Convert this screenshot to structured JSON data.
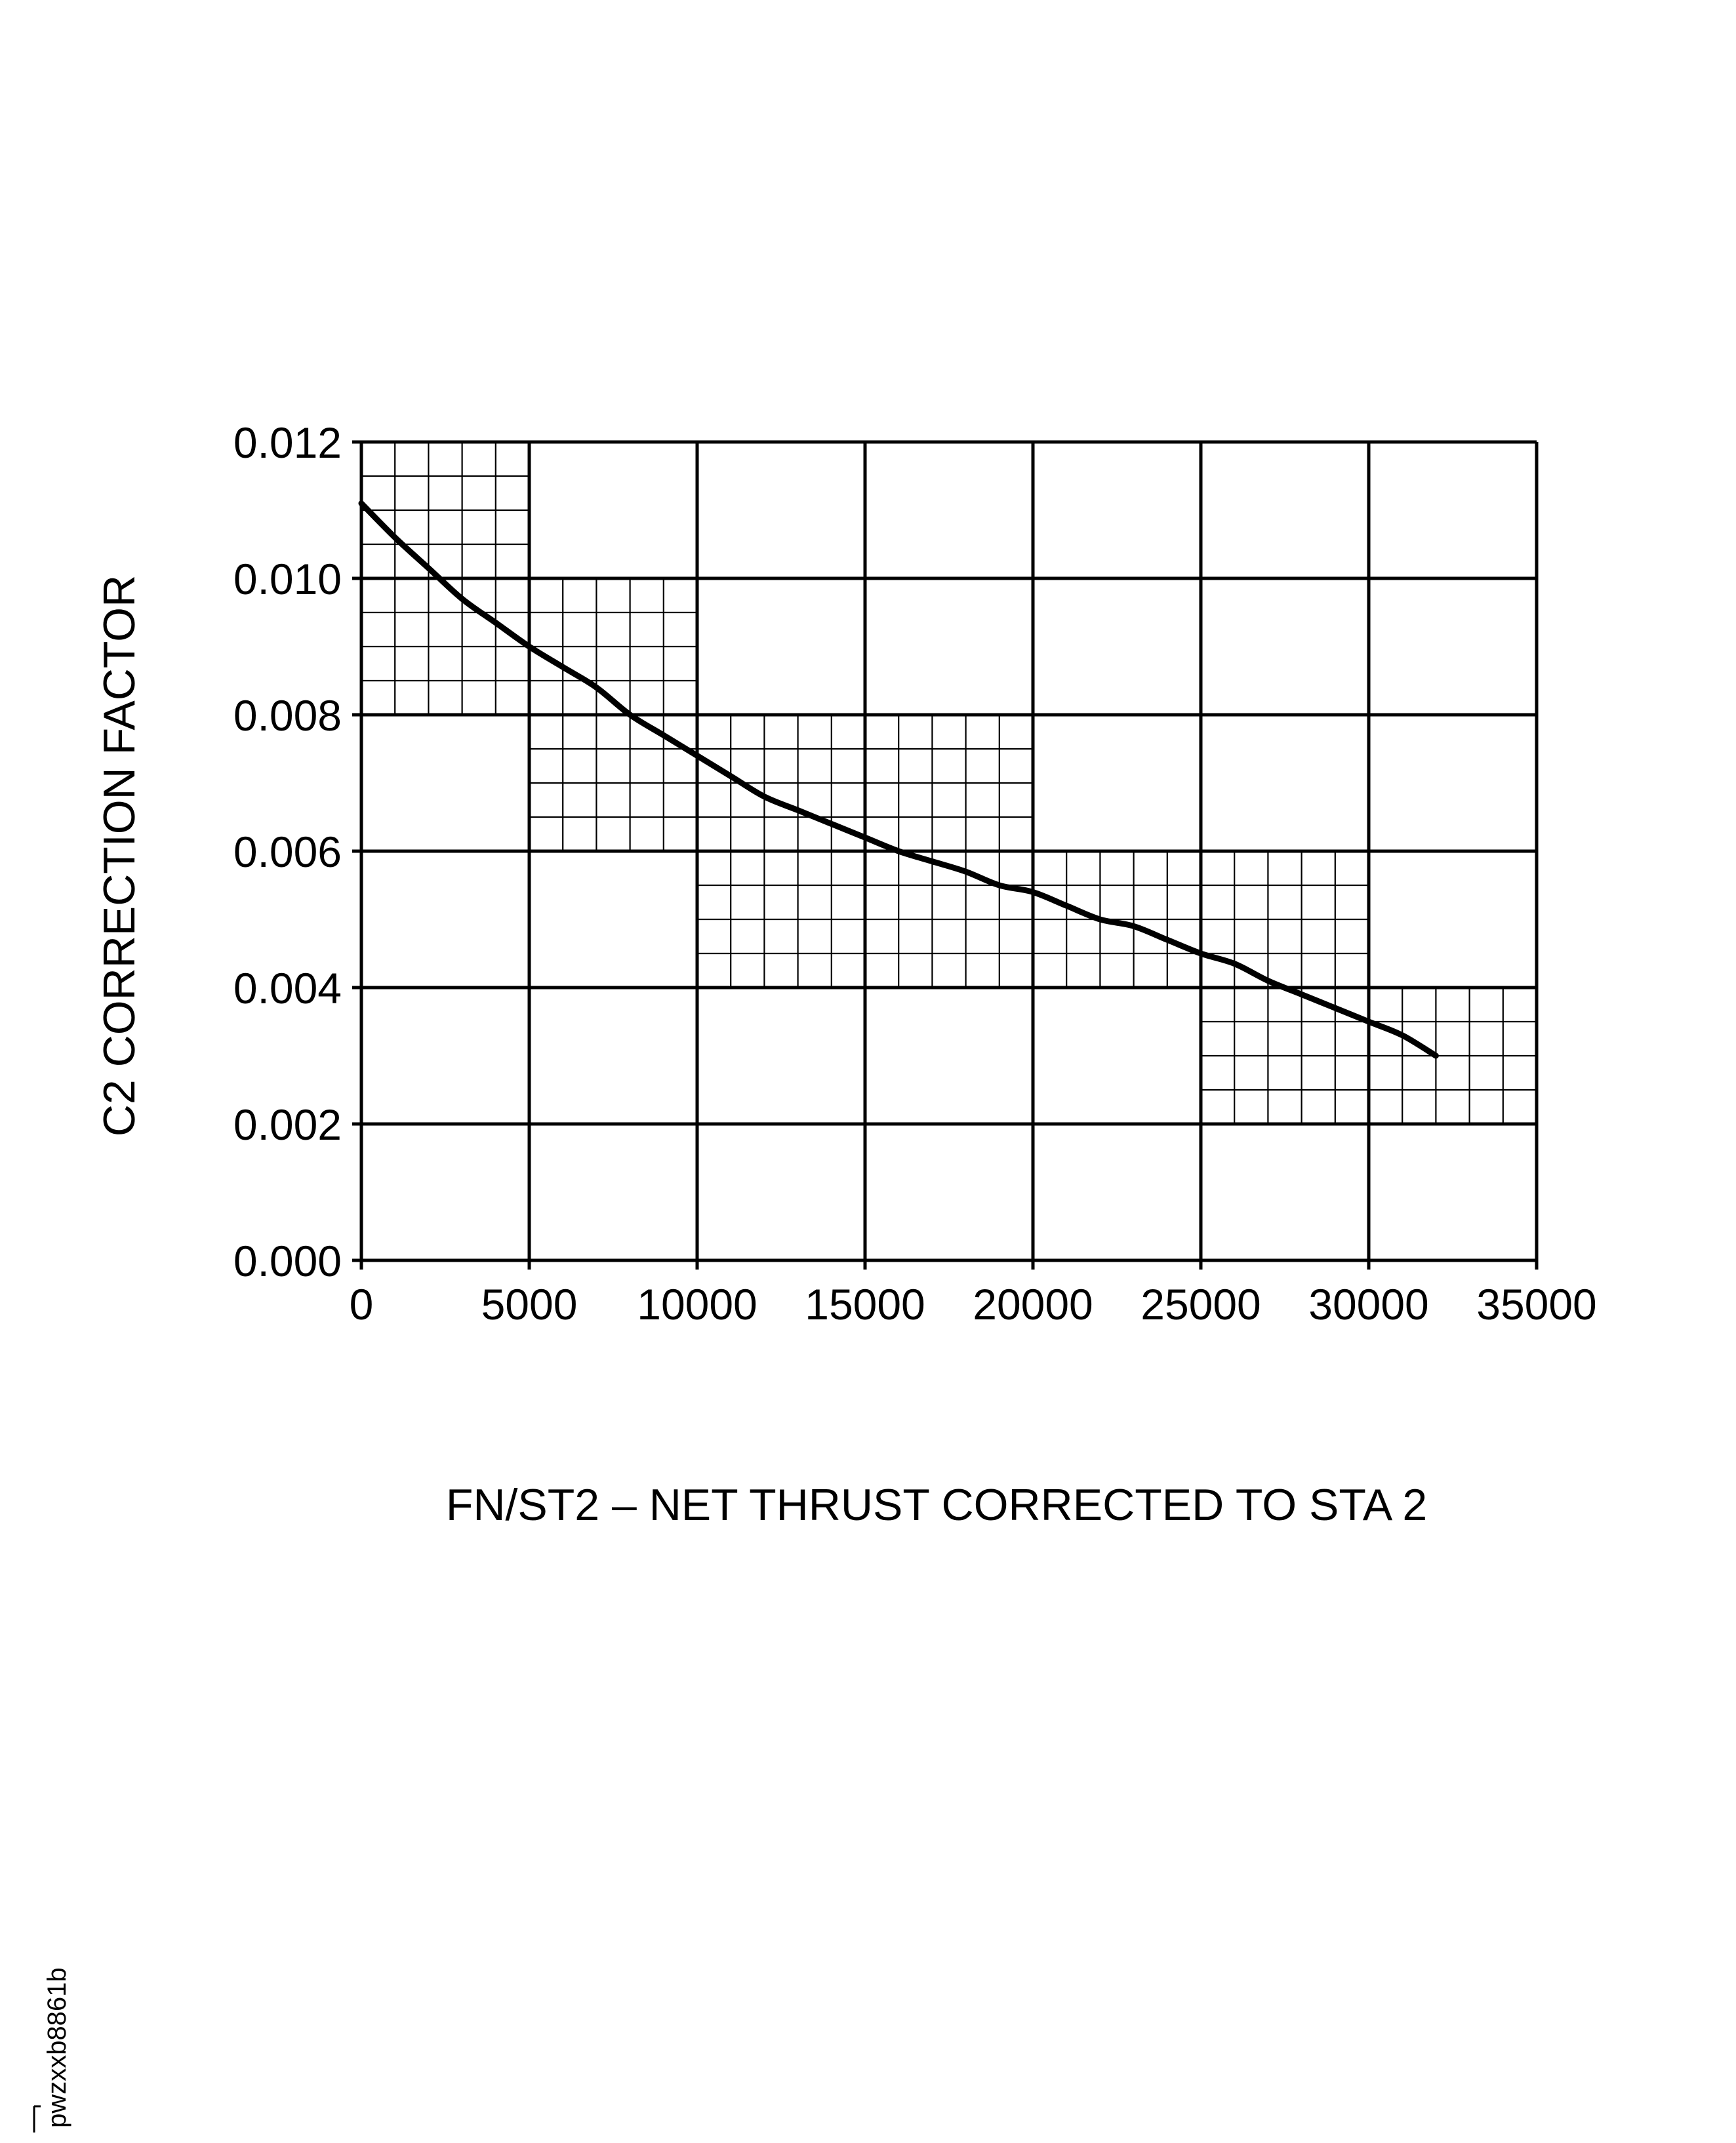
{
  "chart_data": {
    "type": "line",
    "xlabel": "FN/ST2 – NET THRUST CORRECTED TO STA 2",
    "ylabel": "C2 CORRECTION FACTOR",
    "xlim": [
      0,
      35000
    ],
    "ylim": [
      0,
      0.012
    ],
    "x_ticks": [
      "0",
      "5000",
      "10000",
      "15000",
      "20000",
      "25000",
      "30000",
      "35000"
    ],
    "y_ticks": [
      "0.000",
      "0.002",
      "0.004",
      "0.006",
      "0.008",
      "0.010",
      "0.012"
    ],
    "grid": true,
    "fine_grid_regions": [
      {
        "x": [
          0,
          5000
        ],
        "y": [
          0.008,
          0.012
        ]
      },
      {
        "x": [
          5000,
          10000
        ],
        "y": [
          0.006,
          0.01
        ]
      },
      {
        "x": [
          10000,
          20000
        ],
        "y": [
          0.004,
          0.008
        ]
      },
      {
        "x": [
          20000,
          30000
        ],
        "y": [
          0.004,
          0.006
        ]
      },
      {
        "x": [
          25000,
          35000
        ],
        "y": [
          0.002,
          0.004
        ]
      }
    ],
    "series": [
      {
        "x": [
          0,
          1000,
          2000,
          3000,
          4000,
          5000,
          6000,
          7000,
          8000,
          9000,
          10000,
          11000,
          12000,
          13000,
          14000,
          15000,
          16000,
          17000,
          18000,
          19000,
          20000,
          21000,
          22000,
          23000,
          24000,
          25000,
          26000,
          27000,
          28000,
          29000,
          30000,
          31000,
          32000
        ],
        "y": [
          0.0111,
          0.0106,
          0.01015,
          0.0097,
          0.00935,
          0.009,
          0.0087,
          0.0084,
          0.008,
          0.0077,
          0.0074,
          0.0071,
          0.0068,
          0.0066,
          0.0064,
          0.0062,
          0.006,
          0.00585,
          0.0057,
          0.0055,
          0.0054,
          0.0052,
          0.005,
          0.0049,
          0.0047,
          0.0045,
          0.00435,
          0.0041,
          0.0039,
          0.0037,
          0.0035,
          0.0033,
          0.003
        ]
      }
    ]
  },
  "ref_code": "pwzxxb8861b"
}
